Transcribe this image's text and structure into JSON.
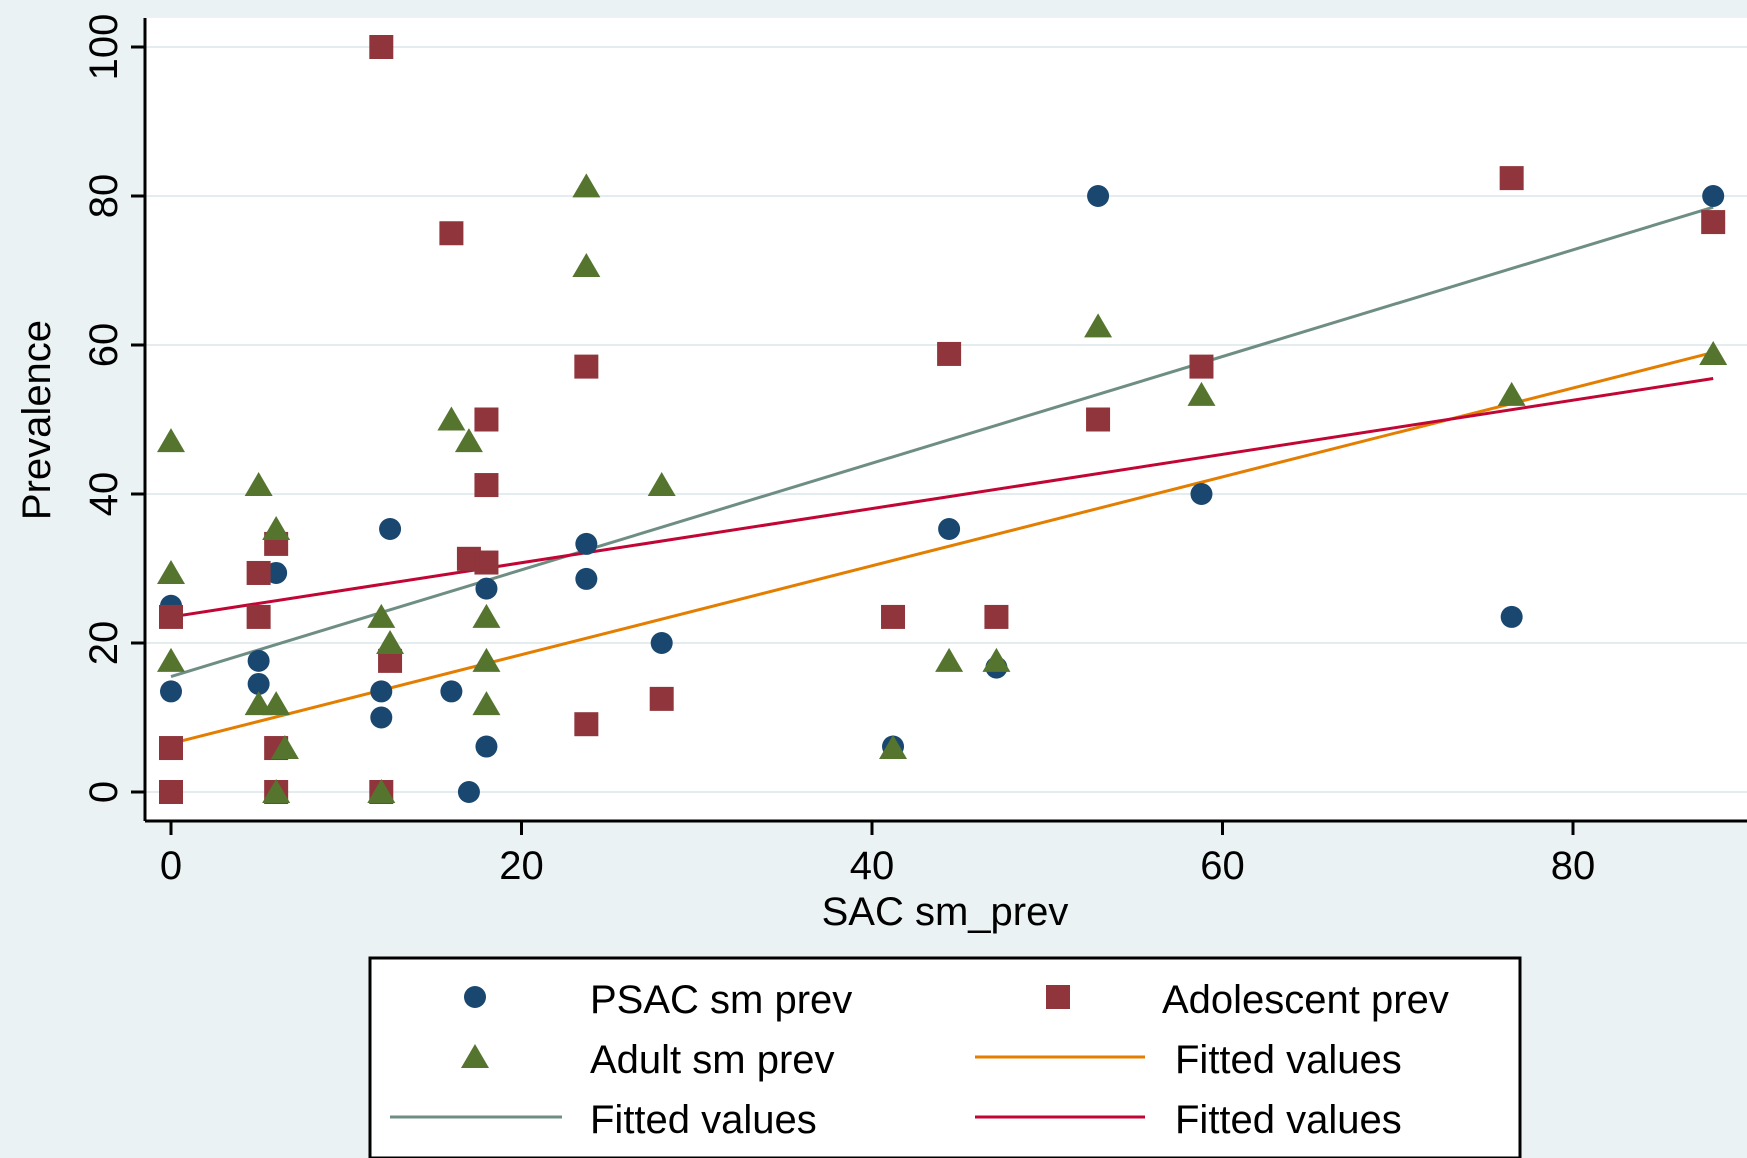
{
  "chart_data": {
    "type": "scatter",
    "xlabel": "SAC sm_prev",
    "ylabel": "Prevalence",
    "xlim": [
      -2,
      89
    ],
    "ylim": [
      -4,
      104
    ],
    "xticks": [
      0,
      20,
      40,
      60,
      80
    ],
    "yticks": [
      0,
      20,
      40,
      60,
      80,
      100
    ],
    "grid": "horizontal",
    "legend_position": "bottom",
    "colors": {
      "background": "#eaf2f3",
      "plot_area": "#ffffff",
      "psac": "#1a476f",
      "adolescent": "#90353b",
      "adult": "#55752f",
      "fit_orange": "#e37e00",
      "fit_green": "#6e8e84",
      "fit_crimson": "#c10534"
    },
    "series": [
      {
        "name": "PSAC sm prev",
        "marker": "circle",
        "points": [
          [
            0,
            25
          ],
          [
            0,
            13.5
          ],
          [
            5,
            17.6
          ],
          [
            5,
            14.5
          ],
          [
            6,
            29.4
          ],
          [
            12,
            13.5
          ],
          [
            12,
            10
          ],
          [
            12.5,
            35.3
          ],
          [
            16,
            13.5
          ],
          [
            17,
            0
          ],
          [
            18,
            27.3
          ],
          [
            18,
            6.1
          ],
          [
            23.7,
            33.3
          ],
          [
            23.7,
            28.6
          ],
          [
            28,
            20
          ],
          [
            41.2,
            6.1
          ],
          [
            44.4,
            35.3
          ],
          [
            47.1,
            16.7
          ],
          [
            52.9,
            80
          ],
          [
            58.8,
            40
          ],
          [
            76.5,
            23.5
          ],
          [
            88,
            80
          ]
        ]
      },
      {
        "name": "Adolescent prev",
        "marker": "square",
        "points": [
          [
            0,
            23.5
          ],
          [
            0,
            5.9
          ],
          [
            0,
            0
          ],
          [
            5,
            29.4
          ],
          [
            5,
            23.5
          ],
          [
            6,
            33.3
          ],
          [
            6,
            5.9
          ],
          [
            6,
            0
          ],
          [
            12,
            100
          ],
          [
            12,
            0
          ],
          [
            12.5,
            17.6
          ],
          [
            16,
            75
          ],
          [
            17,
            31.3
          ],
          [
            18,
            30.8
          ],
          [
            18,
            50
          ],
          [
            18,
            41.2
          ],
          [
            23.7,
            57.1
          ],
          [
            23.7,
            9.1
          ],
          [
            28,
            12.5
          ],
          [
            41.2,
            23.5
          ],
          [
            44.4,
            58.8
          ],
          [
            47.1,
            23.5
          ],
          [
            52.9,
            50
          ],
          [
            58.8,
            57.1
          ],
          [
            76.5,
            82.4
          ],
          [
            88,
            76.5
          ]
        ]
      },
      {
        "name": "Adult sm prev",
        "marker": "triangle",
        "points": [
          [
            0,
            47.1
          ],
          [
            0,
            29.4
          ],
          [
            0,
            17.6
          ],
          [
            5,
            41.2
          ],
          [
            5,
            11.8
          ],
          [
            6,
            35.3
          ],
          [
            6,
            11.8
          ],
          [
            6,
            0
          ],
          [
            6.5,
            5.9
          ],
          [
            12,
            23.5
          ],
          [
            12,
            0
          ],
          [
            12.5,
            20
          ],
          [
            16,
            50
          ],
          [
            17,
            47.1
          ],
          [
            18,
            23.5
          ],
          [
            18,
            17.6
          ],
          [
            18,
            11.8
          ],
          [
            23.7,
            81.3
          ],
          [
            23.7,
            70.6
          ],
          [
            28,
            41.2
          ],
          [
            41.2,
            5.9
          ],
          [
            44.4,
            17.6
          ],
          [
            47.1,
            17.6
          ],
          [
            52.9,
            62.5
          ],
          [
            58.8,
            53.3
          ],
          [
            76.5,
            53.3
          ],
          [
            88,
            58.8
          ]
        ]
      }
    ],
    "fitted_lines": [
      {
        "name": "Fitted values",
        "color": "#e37e00",
        "x": [
          0,
          88
        ],
        "y": [
          6.5,
          59
        ]
      },
      {
        "name": "Fitted values",
        "color": "#6e8e84",
        "x": [
          0,
          88
        ],
        "y": [
          15.5,
          78.5
        ]
      },
      {
        "name": "Fitted values",
        "color": "#c10534",
        "x": [
          0,
          88
        ],
        "y": [
          23.5,
          55.5
        ]
      }
    ]
  },
  "legend": {
    "items": [
      {
        "label": "PSAC sm prev",
        "kind": "circle",
        "color": "#1a476f"
      },
      {
        "label": "Adolescent prev",
        "kind": "square",
        "color": "#90353b"
      },
      {
        "label": "Adult sm prev",
        "kind": "triangle",
        "color": "#55752f"
      },
      {
        "label": "Fitted values",
        "kind": "line",
        "color": "#e37e00"
      },
      {
        "label": "Fitted values",
        "kind": "line",
        "color": "#6e8e84"
      },
      {
        "label": "Fitted values",
        "kind": "line",
        "color": "#c10534"
      }
    ]
  }
}
